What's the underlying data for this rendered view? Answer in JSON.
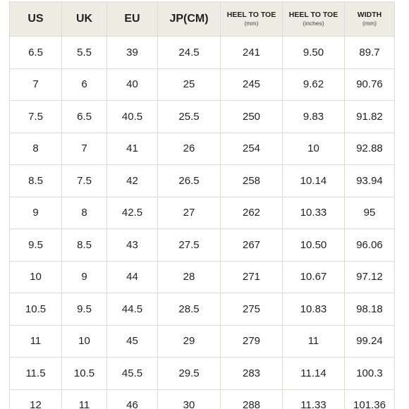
{
  "table": {
    "headers": [
      {
        "label": "US",
        "unit": ""
      },
      {
        "label": "UK",
        "unit": ""
      },
      {
        "label": "EU",
        "unit": ""
      },
      {
        "label": "JP(CM)",
        "unit": ""
      },
      {
        "label": "HEEL TO TOE",
        "unit": "(mm)"
      },
      {
        "label": "HEEL TO TOE",
        "unit": "(inches)"
      },
      {
        "label": "WIDTH",
        "unit": "(mm)"
      }
    ],
    "rows": [
      [
        "6.5",
        "5.5",
        "39",
        "24.5",
        "241",
        "9.50",
        "89.7"
      ],
      [
        "7",
        "6",
        "40",
        "25",
        "245",
        "9.62",
        "90.76"
      ],
      [
        "7.5",
        "6.5",
        "40.5",
        "25.5",
        "250",
        "9.83",
        "91.82"
      ],
      [
        "8",
        "7",
        "41",
        "26",
        "254",
        "10",
        "92.88"
      ],
      [
        "8.5",
        "7.5",
        "42",
        "26.5",
        "258",
        "10.14",
        "93.94"
      ],
      [
        "9",
        "8",
        "42.5",
        "27",
        "262",
        "10.33",
        "95"
      ],
      [
        "9.5",
        "8.5",
        "43",
        "27.5",
        "267",
        "10.50",
        "96.06"
      ],
      [
        "10",
        "9",
        "44",
        "28",
        "271",
        "10.67",
        "97.12"
      ],
      [
        "10.5",
        "9.5",
        "44.5",
        "28.5",
        "275",
        "10.83",
        "98.18"
      ],
      [
        "11",
        "10",
        "45",
        "29",
        "279",
        "11",
        "99.24"
      ],
      [
        "11.5",
        "10.5",
        "45.5",
        "29.5",
        "283",
        "11.14",
        "100.3"
      ],
      [
        "12",
        "11",
        "46",
        "30",
        "288",
        "11.33",
        "101.36"
      ]
    ]
  }
}
